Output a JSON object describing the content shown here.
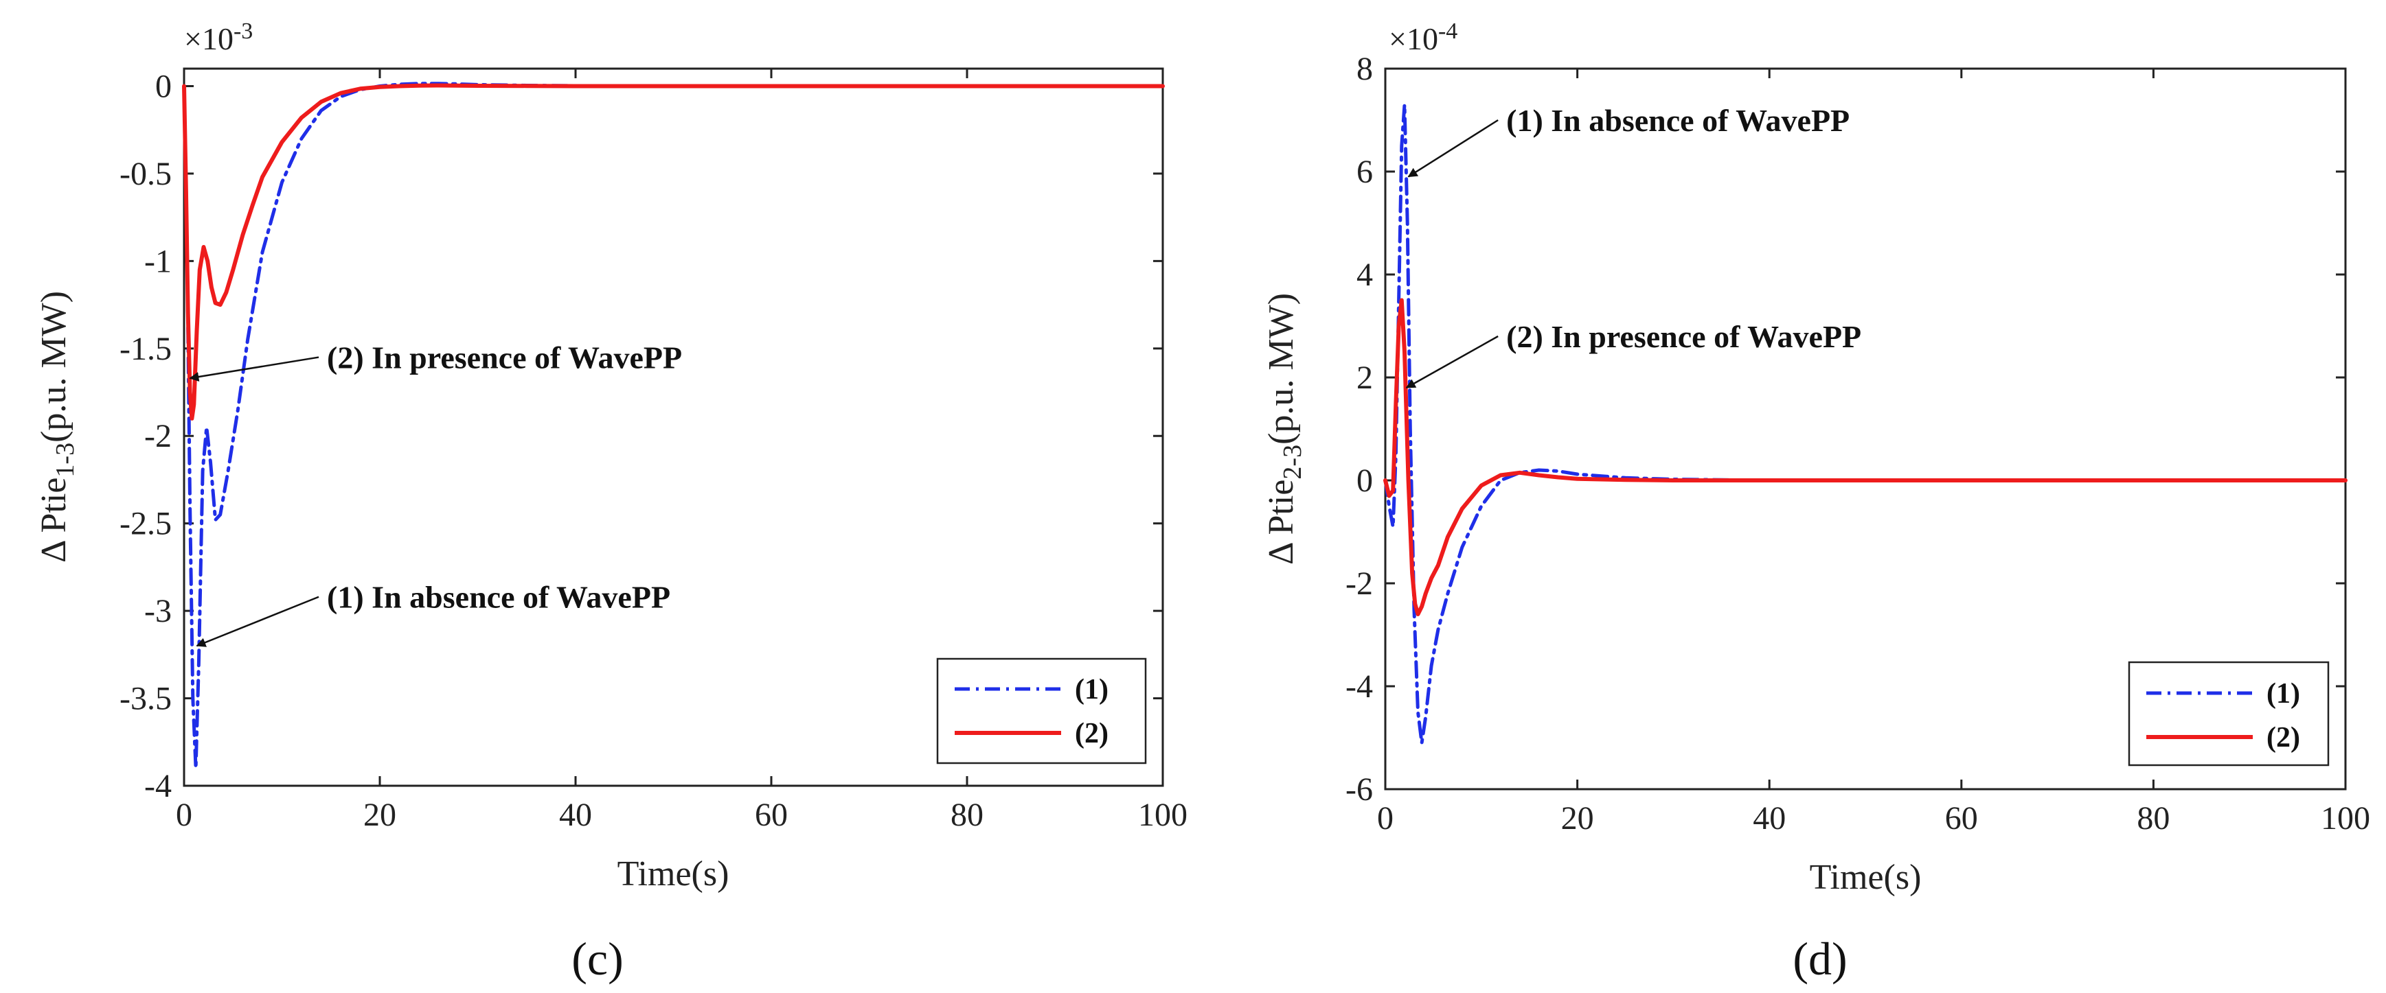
{
  "colors": {
    "series1": "#1f2ee8",
    "series2": "#ee1c1c",
    "axis": "#222222"
  },
  "chart_data": [
    {
      "type": "line",
      "panel_label": "(c)",
      "xlabel": "Time(s)",
      "ylabel_main": "Δ Ptie",
      "ylabel_sub": "1-3",
      "ylabel_unit": "(p.u. MW)",
      "exponent_base": "×10",
      "exponent_power": "-3",
      "xlim": [
        0,
        100
      ],
      "ylim": [
        -4,
        0.1
      ],
      "xticks": [
        0,
        20,
        40,
        60,
        80,
        100
      ],
      "xtick_labels": [
        "0",
        "20",
        "40",
        "60",
        "80",
        "100"
      ],
      "yticks": [
        0,
        -0.5,
        -1,
        -1.5,
        -2,
        -2.5,
        -3,
        -3.5,
        -4
      ],
      "ytick_labels": [
        "0",
        "-0.5",
        "-1",
        "-1.5",
        "-2",
        "-2.5",
        "-3",
        "-3.5",
        "-4"
      ],
      "legend": [
        "(1)",
        "(2)"
      ],
      "legend_position": "bottom-right",
      "series": [
        {
          "name": "(1)",
          "style": "dash-dot",
          "x": [
            0,
            0.3,
            0.6,
            0.9,
            1.2,
            1.5,
            1.9,
            2.3,
            2.7,
            3.2,
            3.7,
            4.5,
            5.5,
            6.5,
            8,
            10,
            12,
            14,
            16,
            18,
            20,
            22,
            24,
            26,
            28,
            30,
            35,
            40,
            50,
            60,
            70,
            80,
            90,
            100
          ],
          "values": [
            0,
            -0.9,
            -2.4,
            -3.5,
            -3.9,
            -3.3,
            -2.2,
            -1.95,
            -2.15,
            -2.48,
            -2.45,
            -2.2,
            -1.85,
            -1.45,
            -0.95,
            -0.55,
            -0.3,
            -0.14,
            -0.06,
            -0.02,
            0.0,
            0.01,
            0.015,
            0.015,
            0.012,
            0.008,
            0.004,
            0.002,
            0,
            0,
            0,
            0,
            0,
            0
          ]
        },
        {
          "name": "(2)",
          "style": "solid",
          "x": [
            0,
            0.2,
            0.4,
            0.6,
            0.8,
            1.0,
            1.3,
            1.6,
            2.0,
            2.4,
            2.8,
            3.2,
            3.7,
            4.3,
            5,
            6,
            7,
            8,
            10,
            12,
            14,
            16,
            18,
            20,
            22,
            24,
            26,
            28,
            30,
            35,
            40,
            50,
            60,
            70,
            80,
            90,
            100
          ],
          "values": [
            0,
            -0.6,
            -1.3,
            -1.75,
            -1.9,
            -1.82,
            -1.4,
            -1.05,
            -0.92,
            -1.0,
            -1.15,
            -1.24,
            -1.25,
            -1.18,
            -1.05,
            -0.85,
            -0.68,
            -0.52,
            -0.32,
            -0.18,
            -0.09,
            -0.04,
            -0.015,
            -0.005,
            0,
            0.003,
            0.004,
            0.003,
            0.002,
            0.001,
            0,
            0,
            0,
            0,
            0,
            0,
            0
          ]
        }
      ],
      "annotations": [
        {
          "text": "(2) In presence of WavePP",
          "target_x": 0.6,
          "target_y": -1.67,
          "label_x": 14.6,
          "label_y": -1.55
        },
        {
          "text": "(1) In absence of WavePP",
          "target_x": 1.3,
          "target_y": -3.2,
          "label_x": 14.6,
          "label_y": -2.92
        }
      ]
    },
    {
      "type": "line",
      "panel_label": "(d)",
      "xlabel": "Time(s)",
      "ylabel_main": "Δ Ptie",
      "ylabel_sub": "2-3",
      "ylabel_unit": "(p.u. MW)",
      "exponent_base": "×10",
      "exponent_power": "-4",
      "xlim": [
        0,
        100
      ],
      "ylim": [
        -6,
        8
      ],
      "xticks": [
        0,
        20,
        40,
        60,
        80,
        100
      ],
      "xtick_labels": [
        "0",
        "20",
        "40",
        "60",
        "80",
        "100"
      ],
      "yticks": [
        8,
        6,
        4,
        2,
        0,
        -2,
        -4,
        -6
      ],
      "ytick_labels": [
        "8",
        "6",
        "4",
        "2",
        "0",
        "-2",
        "-4",
        "-6"
      ],
      "legend": [
        "(1)",
        "(2)"
      ],
      "legend_position": "bottom-right",
      "series": [
        {
          "name": "(1)",
          "style": "dash-dot",
          "x": [
            0,
            0.4,
            0.8,
            1.1,
            1.4,
            1.7,
            2.0,
            2.3,
            2.6,
            3.0,
            3.4,
            3.8,
            4.2,
            4.8,
            5.5,
            6.5,
            8,
            10,
            12,
            14,
            16,
            18,
            20,
            25,
            30,
            40,
            50,
            60,
            70,
            80,
            90,
            100
          ],
          "values": [
            0,
            -0.5,
            -0.9,
            0.5,
            3.5,
            6.5,
            7.3,
            5.0,
            1.0,
            -2.5,
            -4.5,
            -5.1,
            -4.6,
            -3.6,
            -2.9,
            -2.2,
            -1.3,
            -0.5,
            0.0,
            0.15,
            0.2,
            0.18,
            0.12,
            0.05,
            0.02,
            0,
            0,
            0,
            0,
            0,
            0,
            0
          ]
        },
        {
          "name": "(2)",
          "style": "solid",
          "x": [
            0,
            0.4,
            0.8,
            1.1,
            1.4,
            1.7,
            2.0,
            2.4,
            2.8,
            3.1,
            3.4,
            3.8,
            4.2,
            4.8,
            5.5,
            6.5,
            8,
            10,
            12,
            14,
            16,
            18,
            20,
            25,
            30,
            40,
            50,
            60,
            70,
            80,
            90,
            100
          ],
          "values": [
            0,
            -0.3,
            -0.2,
            1.5,
            3.0,
            3.5,
            2.5,
            0.0,
            -1.8,
            -2.4,
            -2.6,
            -2.45,
            -2.2,
            -1.9,
            -1.65,
            -1.1,
            -0.55,
            -0.1,
            0.1,
            0.15,
            0.1,
            0.06,
            0.03,
            0.01,
            0,
            0,
            0,
            0,
            0,
            0,
            0,
            0
          ]
        }
      ],
      "annotations": [
        {
          "text": "(1) In absence of WavePP",
          "target_x": 2.4,
          "target_y": 5.9,
          "label_x": 12.6,
          "label_y": 7.0
        },
        {
          "text": "(2) In presence of WavePP",
          "target_x": 2.2,
          "target_y": 1.8,
          "label_x": 12.6,
          "label_y": 2.8
        }
      ]
    }
  ]
}
